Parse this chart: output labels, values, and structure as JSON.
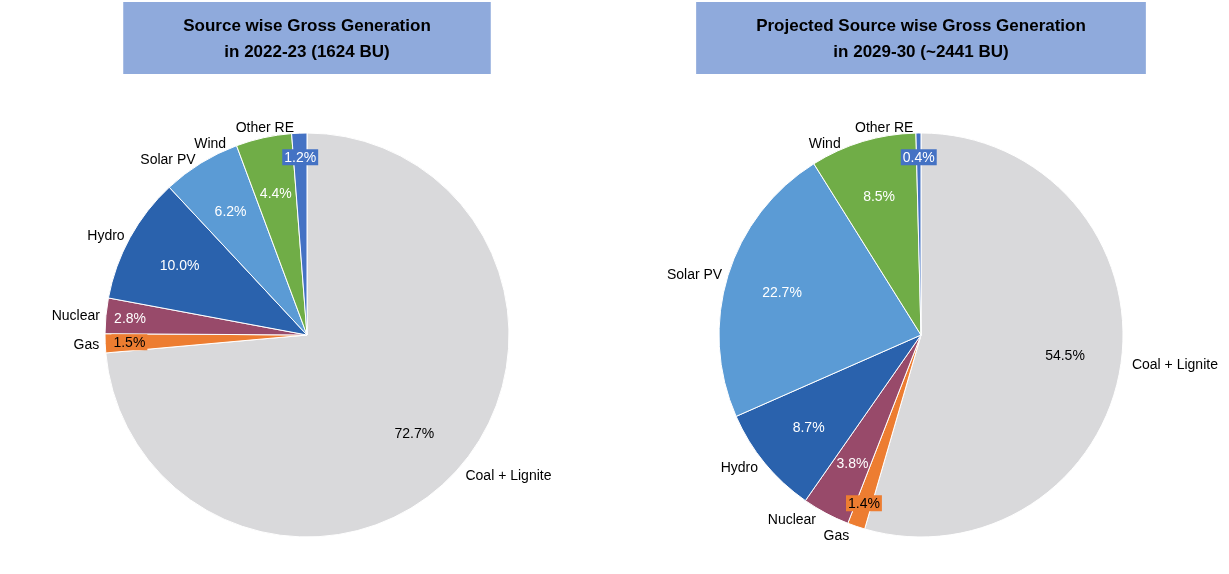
{
  "chart_data": [
    {
      "type": "pie",
      "title": "Source wise Gross Generation\nin 2022-23 (1624 BU)",
      "categories": [
        "Coal + Lignite",
        "Gas",
        "Nuclear",
        "Hydro",
        "Solar PV",
        "Wind",
        "Other RE"
      ],
      "values": [
        72.7,
        1.5,
        2.8,
        10.0,
        6.2,
        4.4,
        1.2
      ],
      "value_labels": [
        "72.7%",
        "1.5%",
        "2.8%",
        "10.0%",
        "6.2%",
        "4.4%",
        "1.2%"
      ],
      "colors": [
        "#d9d9db",
        "#ed7d31",
        "#984a6a",
        "#2a62ad",
        "#5b9bd5",
        "#70ad47",
        "#4472c4"
      ]
    },
    {
      "type": "pie",
      "title": "Projected Source wise Gross Generation\nin 2029-30 (~2441 BU)",
      "categories": [
        "Coal + Lignite",
        "Gas",
        "Nuclear",
        "Hydro",
        "Solar PV",
        "Wind",
        "Other RE"
      ],
      "values": [
        54.5,
        1.4,
        3.8,
        8.7,
        22.7,
        8.5,
        0.4
      ],
      "value_labels": [
        "54.5%",
        "1.4%",
        "3.8%",
        "8.7%",
        "22.7%",
        "8.5%",
        "0.4%"
      ],
      "colors": [
        "#d9d9db",
        "#ed7d31",
        "#984a6a",
        "#2a62ad",
        "#5b9bd5",
        "#70ad47",
        "#4472c4"
      ]
    }
  ]
}
